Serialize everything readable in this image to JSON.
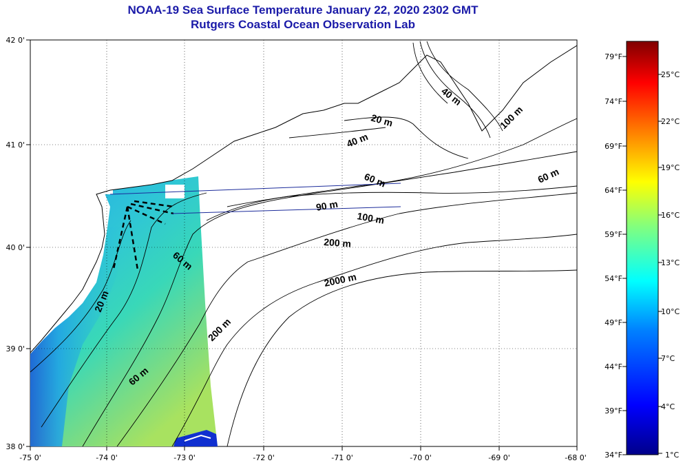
{
  "title": {
    "line1": "NOAA-19 Sea Surface Temperature January 22, 2020 2302 GMT",
    "line2": "Rutgers Coastal Ocean Observation Lab"
  },
  "axes": {
    "x_ticks": [
      "-75 0'",
      "-74 0'",
      "-73 0'",
      "-72 0'",
      "-71 0'",
      "-70 0'",
      "-69 0'",
      "-68 0'"
    ],
    "y_ticks": [
      "42 0'",
      "41 0'",
      "40 0'",
      "39 0'",
      "38 0'"
    ]
  },
  "contour_labels": [
    "40 m",
    "20 m",
    "100 m",
    "40 m",
    "60 m",
    "60 m",
    "90 m",
    "100 m",
    "200 m",
    "60 m",
    "2000 m",
    "20 m",
    "200 m",
    "60 m"
  ],
  "colorbar": {
    "fahrenheit": [
      "79°F",
      "74°F",
      "69°F",
      "64°F",
      "59°F",
      "54°F",
      "49°F",
      "44°F",
      "39°F",
      "34°F"
    ],
    "celsius": [
      "25°C",
      "22°C",
      "19°C",
      "16°C",
      "13°C",
      "10°C",
      "7°C",
      "4°C",
      "1°C"
    ],
    "range_f": [
      34,
      80
    ],
    "colors": [
      "#00008a",
      "#0000ff",
      "#0080ff",
      "#00ffff",
      "#80ff80",
      "#ffff00",
      "#ff8000",
      "#ff0000",
      "#800000"
    ]
  },
  "colors": {
    "title": "#1a1aa8",
    "land": "#ffffff",
    "water_cold": "#1f6fe0",
    "water_mid": "#2ec8d8",
    "water_warm": "#8ee07a"
  }
}
